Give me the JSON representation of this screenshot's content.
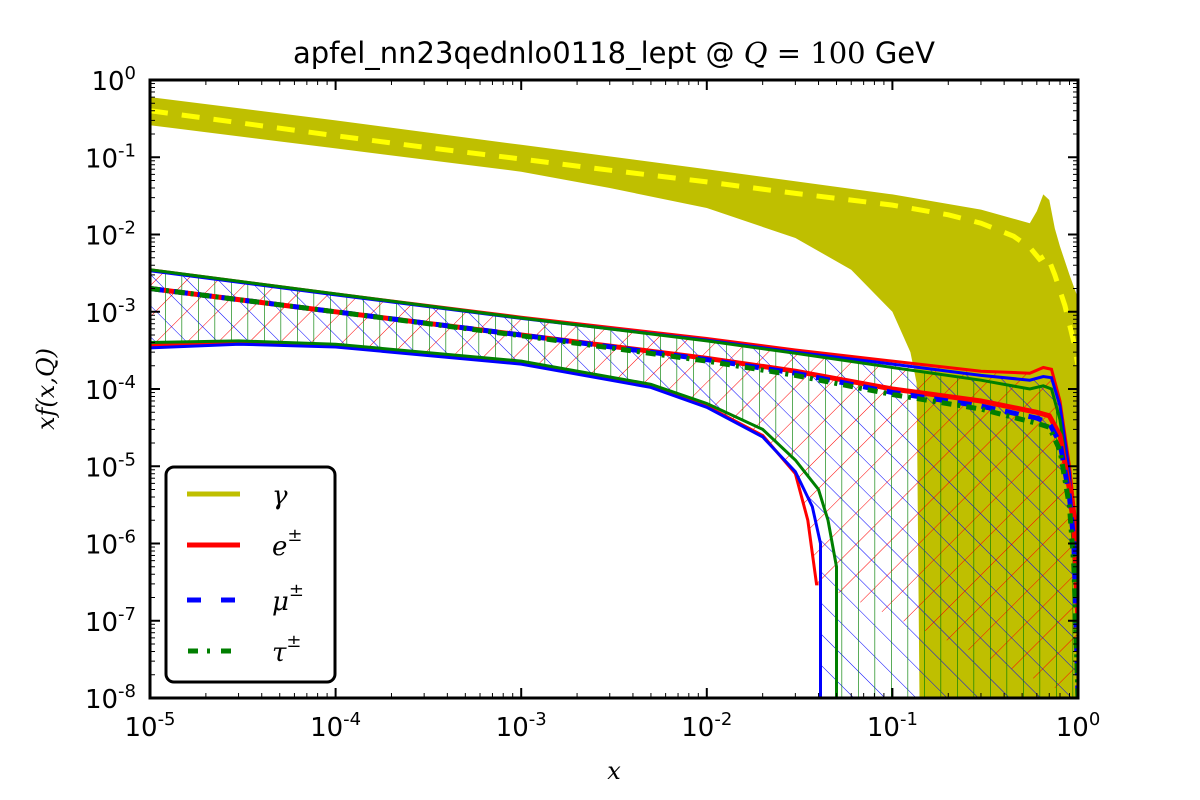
{
  "chart_data": {
    "type": "line",
    "title": "apfel_nn23qednlo0118_lept @ Q = 100 GeV",
    "title_parts": {
      "prefix": "apfel_nn23qednlo0118_lept @ ",
      "var": "Q",
      "eq": " = ",
      "value": "100",
      "unit": " GeV"
    },
    "xlabel": "x",
    "ylabel": "xf(x,Q)",
    "xscale": "log",
    "yscale": "log",
    "xlim": [
      1e-05,
      1.0
    ],
    "ylim": [
      1e-08,
      1.0
    ],
    "grid": false,
    "legend_position": "bottom-left",
    "x_ticks": [
      {
        "base": "10",
        "exp": "-5",
        "value": 1e-05
      },
      {
        "base": "10",
        "exp": "-4",
        "value": 0.0001
      },
      {
        "base": "10",
        "exp": "-3",
        "value": 0.001
      },
      {
        "base": "10",
        "exp": "-2",
        "value": 0.01
      },
      {
        "base": "10",
        "exp": "-1",
        "value": 0.1
      },
      {
        "base": "10",
        "exp": "0",
        "value": 1
      }
    ],
    "y_ticks": [
      {
        "base": "10",
        "exp": "0",
        "value": 1
      },
      {
        "base": "10",
        "exp": "-1",
        "value": 0.1
      },
      {
        "base": "10",
        "exp": "-2",
        "value": 0.01
      },
      {
        "base": "10",
        "exp": "-3",
        "value": 0.001
      },
      {
        "base": "10",
        "exp": "-4",
        "value": 0.0001
      },
      {
        "base": "10",
        "exp": "-5",
        "value": 1e-05
      },
      {
        "base": "10",
        "exp": "-6",
        "value": 1e-06
      },
      {
        "base": "10",
        "exp": "-7",
        "value": 1e-07
      },
      {
        "base": "10",
        "exp": "-8",
        "value": 1e-08
      }
    ],
    "legend": [
      {
        "name": "gamma",
        "label": "γ",
        "sup": "",
        "color": "#bfbf00",
        "style": "solid"
      },
      {
        "name": "electron",
        "label": "e",
        "sup": "±",
        "color": "#ff0000",
        "style": "solid"
      },
      {
        "name": "muon",
        "label": "μ",
        "sup": "±",
        "color": "#0000ff",
        "style": "dashed"
      },
      {
        "name": "tau",
        "label": "τ",
        "sup": "±",
        "color": "#007f00",
        "style": "dashdot"
      }
    ],
    "series": [
      {
        "name": "gamma",
        "color": "#bfbf00",
        "central_color": "#ffff00",
        "band_fill": "#bfbf00",
        "central": {
          "x": [
            1e-05,
            3e-05,
            0.0001,
            0.0003,
            0.001,
            0.003,
            0.01,
            0.03,
            0.1,
            0.2,
            0.3,
            0.45,
            0.55,
            0.62,
            0.68,
            0.75,
            0.85,
            0.95,
            1.0
          ],
          "y": [
            0.4,
            0.28,
            0.19,
            0.135,
            0.095,
            0.068,
            0.048,
            0.034,
            0.024,
            0.018,
            0.014,
            0.0095,
            0.0068,
            0.0048,
            0.0055,
            0.003,
            0.0012,
            0.0004,
            0.0002
          ]
        },
        "upper": {
          "x": [
            1e-05,
            0.0001,
            0.001,
            0.01,
            0.1,
            0.3,
            0.45,
            0.55,
            0.6,
            0.65,
            0.7,
            0.75,
            0.8,
            0.9,
            1.0
          ],
          "y": [
            0.6,
            0.3,
            0.145,
            0.07,
            0.033,
            0.021,
            0.016,
            0.014,
            0.02,
            0.033,
            0.028,
            0.012,
            0.007,
            0.003,
            0.0015
          ]
        },
        "lower": {
          "x": [
            1e-05,
            0.0001,
            0.001,
            0.003,
            0.01,
            0.03,
            0.06,
            0.1,
            0.125,
            0.135,
            0.14,
            0.145,
            1.0
          ],
          "y": [
            0.26,
            0.13,
            0.065,
            0.04,
            0.022,
            0.009,
            0.0035,
            0.001,
            0.0003,
            0.00012,
            1e-08,
            1e-08,
            1e-08
          ]
        }
      },
      {
        "name": "electron",
        "color": "#ff0000",
        "central": {
          "x": [
            1e-05,
            0.0001,
            0.001,
            0.01,
            0.03,
            0.1,
            0.3,
            0.6,
            0.7,
            0.8,
            0.9,
            0.95,
            1.0
          ],
          "y": [
            0.002,
            0.001,
            0.0005,
            0.00025,
            0.00017,
            0.0001,
            7e-05,
            5e-05,
            4.5e-05,
            2.5e-05,
            5e-06,
            1.5e-06,
            1e-07
          ]
        },
        "upper": {
          "x": [
            1e-05,
            0.0001,
            0.001,
            0.01,
            0.03,
            0.1,
            0.3,
            0.55,
            0.65,
            0.72,
            0.8,
            0.9,
            1.0
          ],
          "y": [
            0.0035,
            0.0017,
            0.00085,
            0.00045,
            0.00032,
            0.00023,
            0.00017,
            0.00016,
            0.00019,
            0.00018,
            7e-05,
            1e-05,
            1e-06
          ]
        },
        "lower": {
          "x": [
            1e-05,
            3e-05,
            0.0001,
            0.001,
            0.005,
            0.01,
            0.02,
            0.03,
            0.035,
            0.039,
            0.04
          ],
          "y": [
            0.00037,
            0.0004,
            0.00036,
            0.00022,
            0.00011,
            6e-05,
            2.5e-05,
            8e-06,
            2e-06,
            3e-07,
            3e-07
          ]
        }
      },
      {
        "name": "muon",
        "color": "#0000ff",
        "central": {
          "x": [
            1e-05,
            0.0001,
            0.001,
            0.01,
            0.03,
            0.1,
            0.3,
            0.6,
            0.7,
            0.8,
            0.9,
            0.95,
            1.0
          ],
          "y": [
            0.002,
            0.001,
            0.0005,
            0.00024,
            0.00016,
            9e-05,
            6e-05,
            4.2e-05,
            3.6e-05,
            2e-05,
            4e-06,
            1e-06,
            1e-08
          ]
        },
        "upper": {
          "x": [
            1e-05,
            0.0001,
            0.001,
            0.01,
            0.03,
            0.1,
            0.3,
            0.55,
            0.65,
            0.72,
            0.8,
            0.9,
            1.0
          ],
          "y": [
            0.0034,
            0.00165,
            0.00082,
            0.00043,
            0.0003,
            0.00021,
            0.00015,
            0.00013,
            0.000145,
            0.00014,
            6e-05,
            8e-06,
            1e-07
          ]
        },
        "lower": {
          "x": [
            1e-05,
            3e-05,
            0.0001,
            0.001,
            0.005,
            0.01,
            0.02,
            0.03,
            0.037,
            0.041,
            0.041
          ],
          "y": [
            0.00034,
            0.00038,
            0.00035,
            0.00021,
            0.000105,
            5.8e-05,
            2.4e-05,
            8.5e-06,
            3e-06,
            1e-06,
            1e-08
          ]
        }
      },
      {
        "name": "tau",
        "color": "#007f00",
        "central": {
          "x": [
            1e-05,
            0.0001,
            0.001,
            0.01,
            0.03,
            0.1,
            0.3,
            0.6,
            0.7,
            0.8,
            0.9,
            0.95,
            1.0
          ],
          "y": [
            0.002,
            0.001,
            0.00049,
            0.00023,
            0.00015,
            8.5e-05,
            5.5e-05,
            3.6e-05,
            3.2e-05,
            1.6e-05,
            3e-06,
            5e-07,
            1e-08
          ]
        },
        "upper": {
          "x": [
            1e-05,
            0.0001,
            0.001,
            0.01,
            0.03,
            0.1,
            0.3,
            0.55,
            0.65,
            0.72,
            0.8,
            0.9,
            1.0
          ],
          "y": [
            0.0035,
            0.0017,
            0.00083,
            0.00042,
            0.00029,
            0.00019,
            0.00013,
            0.0001,
            0.00011,
            0.0001,
            4e-05,
            5e-06,
            1e-07
          ]
        },
        "lower": {
          "x": [
            1e-05,
            3e-05,
            0.0001,
            0.001,
            0.005,
            0.01,
            0.02,
            0.03,
            0.04,
            0.045,
            0.05,
            0.05
          ],
          "y": [
            0.0004,
            0.00042,
            0.00038,
            0.00023,
            0.000115,
            6.5e-05,
            3e-05,
            1.2e-05,
            5e-06,
            2e-06,
            5e-07,
            1e-08
          ]
        }
      }
    ]
  }
}
